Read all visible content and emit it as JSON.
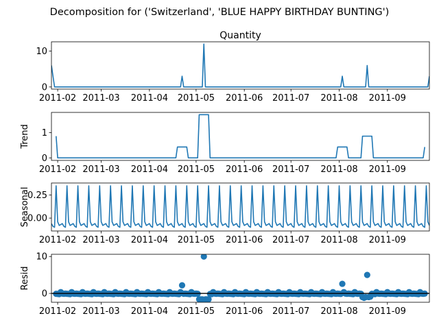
{
  "figure": {
    "suptitle": "Decomposition for ('Switzerland', 'BLUE HAPPY BIRTHDAY BUNTING')",
    "line_color": "#1f77b4"
  },
  "chart_data": [
    {
      "type": "line",
      "title": "Quantity",
      "ylabel": "",
      "ylim": [
        -0.6,
        12.6
      ],
      "yticks": [
        0,
        10
      ],
      "x_range": [
        "2011-01-28",
        "2011-09-28"
      ],
      "xticks": [
        "2011-02",
        "2011-03",
        "2011-04",
        "2011-05",
        "2011-06",
        "2011-07",
        "2011-08",
        "2011-09"
      ],
      "points": [
        [
          "2011-01-28",
          6
        ],
        [
          "2011-01-30",
          0
        ],
        [
          "2011-04-21",
          0
        ],
        [
          "2011-04-22",
          3
        ],
        [
          "2011-04-23",
          0
        ],
        [
          "2011-05-05",
          0
        ],
        [
          "2011-05-06",
          12
        ],
        [
          "2011-05-07",
          0
        ],
        [
          "2011-08-02",
          0
        ],
        [
          "2011-08-03",
          3
        ],
        [
          "2011-08-04",
          0
        ],
        [
          "2011-08-18",
          0
        ],
        [
          "2011-08-19",
          6
        ],
        [
          "2011-08-20",
          0
        ],
        [
          "2011-09-27",
          0
        ],
        [
          "2011-09-28",
          3
        ]
      ]
    },
    {
      "type": "line",
      "title": "",
      "ylabel": "Trend",
      "ylim": [
        -0.1,
        1.8
      ],
      "yticks": [
        0,
        1
      ],
      "x_range": [
        "2011-01-28",
        "2011-09-28"
      ],
      "xticks": [
        "2011-02",
        "2011-03",
        "2011-04",
        "2011-05",
        "2011-06",
        "2011-07",
        "2011-08",
        "2011-09"
      ],
      "points": [
        [
          "2011-01-31",
          0.86
        ],
        [
          "2011-02-01",
          0
        ],
        [
          "2011-04-18",
          0
        ],
        [
          "2011-04-19",
          0.43
        ],
        [
          "2011-04-25",
          0.43
        ],
        [
          "2011-04-26",
          0
        ],
        [
          "2011-05-02",
          0
        ],
        [
          "2011-05-03",
          1.71
        ],
        [
          "2011-05-09",
          1.71
        ],
        [
          "2011-05-10",
          0
        ],
        [
          "2011-07-30",
          0
        ],
        [
          "2011-07-31",
          0.43
        ],
        [
          "2011-08-06",
          0.43
        ],
        [
          "2011-08-07",
          0
        ],
        [
          "2011-08-15",
          0
        ],
        [
          "2011-08-16",
          0.86
        ],
        [
          "2011-08-22",
          0.86
        ],
        [
          "2011-08-23",
          0
        ],
        [
          "2011-09-24",
          0
        ],
        [
          "2011-09-25",
          0.43
        ]
      ]
    },
    {
      "type": "line",
      "title": "",
      "ylabel": "Seasonal",
      "ylim": [
        -0.14,
        0.38
      ],
      "yticks": [
        0,
        0.25
      ],
      "ytick_labels": [
        "0.00",
        "0.25"
      ],
      "x_range": [
        "2011-01-28",
        "2011-09-28"
      ],
      "xticks": [
        "2011-02",
        "2011-03",
        "2011-04",
        "2011-05",
        "2011-06",
        "2011-07",
        "2011-08",
        "2011-09"
      ],
      "pattern": {
        "start": "2011-01-28",
        "end": "2011-09-28",
        "period_days": 7,
        "weekly_values": [
          -0.06,
          -0.09,
          -0.1,
          0.35,
          -0.04,
          -0.08,
          -0.07
        ]
      }
    },
    {
      "type": "scatter",
      "title": "",
      "ylabel": "Resid",
      "ylim": [
        -2.4,
        10.6
      ],
      "yticks": [
        0,
        10
      ],
      "x_range": [
        "2011-01-28",
        "2011-09-28"
      ],
      "xticks": [
        "2011-02",
        "2011-03",
        "2011-04",
        "2011-05",
        "2011-06",
        "2011-07",
        "2011-08",
        "2011-09"
      ],
      "baseline": {
        "start": "2011-01-31",
        "end": "2011-09-25",
        "base_value": 0.05,
        "weekly_offsets": [
          -0.15,
          -0.2,
          -0.25,
          0.3,
          -0.1,
          -0.15,
          -0.1
        ]
      },
      "outliers": [
        [
          "2011-04-22",
          2.2
        ],
        [
          "2011-05-03",
          -1.6
        ],
        [
          "2011-05-04",
          -1.6
        ],
        [
          "2011-05-05",
          -1.6
        ],
        [
          "2011-05-06",
          10
        ],
        [
          "2011-05-07",
          -1.6
        ],
        [
          "2011-05-08",
          -1.6
        ],
        [
          "2011-05-09",
          -1.6
        ],
        [
          "2011-08-03",
          2.6
        ],
        [
          "2011-08-16",
          -1.0
        ],
        [
          "2011-08-17",
          -1.2
        ],
        [
          "2011-08-18",
          -1.0
        ],
        [
          "2011-08-19",
          5
        ],
        [
          "2011-08-20",
          -1.0
        ],
        [
          "2011-08-21",
          -0.9
        ]
      ]
    }
  ]
}
